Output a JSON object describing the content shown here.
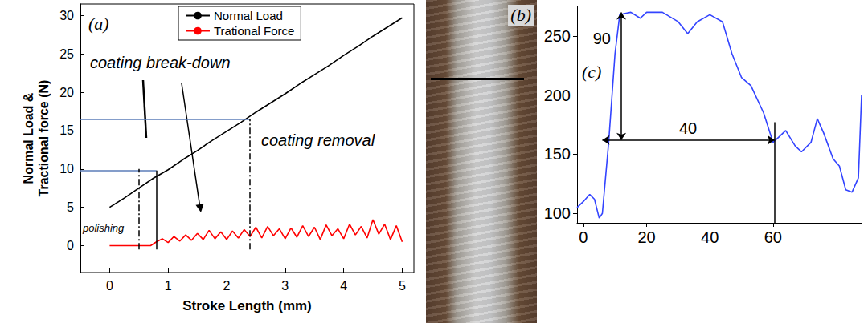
{
  "chart_data": [
    {
      "type": "line",
      "title": "(a)",
      "xlabel": "Stroke Length (mm)",
      "ylabel": "Normal Load & Tractional force (N)",
      "xlim": [
        -0.5,
        5.2
      ],
      "xticks": [
        0,
        1,
        2,
        3,
        4,
        5
      ],
      "ylim": [
        -3.5,
        31.5
      ],
      "yticks": [
        0,
        5,
        10,
        15,
        20,
        25,
        30
      ],
      "grid": false,
      "legend": "upper center",
      "series": [
        {
          "name": "Normal Load",
          "color": "#000000",
          "x": [
            0,
            0.25,
            0.5,
            0.75,
            1.0,
            1.25,
            1.5,
            1.75,
            2.0,
            2.25,
            2.5,
            2.75,
            3.0,
            3.25,
            3.5,
            3.75,
            4.0,
            4.25,
            4.5,
            4.75,
            5.0
          ],
          "values": [
            5.0,
            6.2,
            7.5,
            8.8,
            9.9,
            11.2,
            12.4,
            13.7,
            14.9,
            16.1,
            17.4,
            18.6,
            19.8,
            21.1,
            22.3,
            23.5,
            24.8,
            26.0,
            27.3,
            28.5,
            29.7
          ]
        },
        {
          "name": "Trational Force",
          "color": "#ff0000",
          "x": [
            0,
            0.1,
            0.2,
            0.3,
            0.4,
            0.5,
            0.6,
            0.7,
            0.8,
            0.9,
            1.0,
            1.1,
            1.2,
            1.3,
            1.4,
            1.5,
            1.6,
            1.7,
            1.8,
            1.9,
            2.0,
            2.1,
            2.2,
            2.3,
            2.4,
            2.5,
            2.6,
            2.7,
            2.8,
            2.9,
            3.0,
            3.1,
            3.2,
            3.3,
            3.4,
            3.5,
            3.6,
            3.7,
            3.8,
            3.9,
            4.0,
            4.1,
            4.2,
            4.3,
            4.4,
            4.5,
            4.6,
            4.7,
            4.8,
            4.9,
            5.0
          ],
          "values": [
            0,
            0,
            0,
            0,
            0,
            0,
            0,
            0,
            0.5,
            0.9,
            0.4,
            1.2,
            0.6,
            1.4,
            0.7,
            1.6,
            0.8,
            2.0,
            0.9,
            1.8,
            0.8,
            1.9,
            1.0,
            2.1,
            1.2,
            2.4,
            1.0,
            2.5,
            1.3,
            2.2,
            0.9,
            2.3,
            1.1,
            2.6,
            1.2,
            2.4,
            0.8,
            2.7,
            1.3,
            2.2,
            0.9,
            2.8,
            1.4,
            2.5,
            1.0,
            3.4,
            1.5,
            2.8,
            0.8,
            2.6,
            0.5
          ]
        }
      ],
      "annotations": [
        {
          "text": "coating break-down"
        },
        {
          "text": "coating removal"
        },
        {
          "text": "polishing"
        }
      ],
      "hlines": [
        {
          "y": 9.8,
          "xmin": -0.5,
          "xmax": 0.8,
          "color": "#5b7db8",
          "line_style": "solid"
        },
        {
          "y": 16.5,
          "xmin": -0.5,
          "xmax": 2.4,
          "color": "#5b7db8",
          "line_style": "solid"
        }
      ],
      "vlines": [
        {
          "x": 0.5,
          "ymin": -0.5,
          "ymax": 10,
          "color": "#000000",
          "line_style": "dashdot"
        },
        {
          "x": 0.8,
          "ymin": -0.5,
          "ymax": 9.8,
          "color": "#000000",
          "line_style": "solid"
        },
        {
          "x": 2.4,
          "ymin": -0.5,
          "ymax": 16.5,
          "color": "#000000",
          "line_style": "dashdot"
        }
      ]
    },
    {
      "type": "line",
      "title": "(c)",
      "xlim": [
        -2,
        88
      ],
      "xticks": [
        0,
        20,
        40,
        60
      ],
      "ylim": [
        92,
        275
      ],
      "yticks": [
        100,
        150,
        200,
        250
      ],
      "grid": false,
      "series": [
        {
          "color": "#3344ff",
          "x": [
            -2,
            0,
            2,
            3.5,
            5,
            6,
            8,
            10,
            11.5,
            15,
            18,
            20,
            25,
            30,
            33,
            36,
            40,
            44,
            47,
            50,
            53,
            57,
            60,
            62,
            64,
            67,
            69,
            72,
            74,
            76,
            79,
            81,
            83,
            85,
            87,
            88
          ],
          "values": [
            105,
            110,
            116,
            112,
            96,
            100,
            160,
            235,
            268,
            270,
            265,
            270,
            270,
            262,
            252,
            262,
            268,
            262,
            235,
            215,
            208,
            185,
            160,
            165,
            170,
            157,
            152,
            160,
            180,
            168,
            146,
            140,
            120,
            118,
            130,
            200
          ]
        }
      ],
      "annotations": [
        {
          "text": "90"
        },
        {
          "text": "40"
        }
      ],
      "hlines": [
        {
          "y": 162,
          "xmin": 6,
          "xmax": 60.5,
          "color": "#000000",
          "line_style": "solid",
          "marker": "arrow"
        }
      ],
      "vlines": [
        {
          "x": 12,
          "ymin": 162,
          "ymax": 270,
          "color": "#000000",
          "line_style": "solid",
          "marker": "arrow"
        },
        {
          "x": 60.5,
          "ymin": 92,
          "ymax": 177,
          "color": "#000000",
          "line_style": "solid"
        }
      ]
    }
  ],
  "image_panel": {
    "label": "(b)"
  }
}
